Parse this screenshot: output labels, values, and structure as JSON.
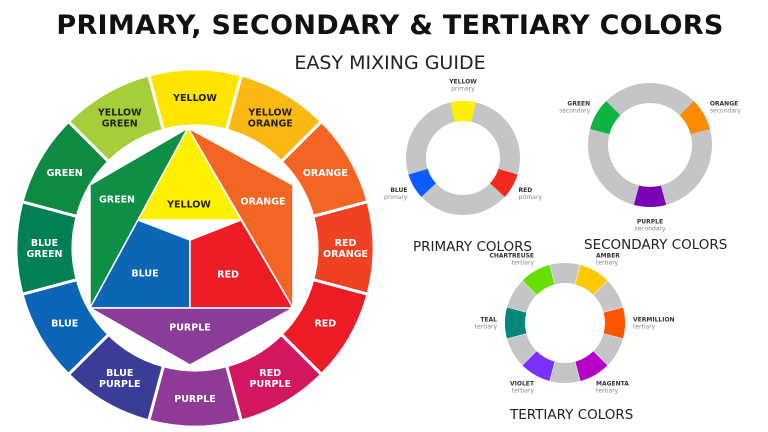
{
  "header": {
    "title": "PRIMARY, SECONDARY & TERTIARY COLORS",
    "subtitle": "EASY MIXING GUIDE"
  },
  "wheel": {
    "ring": [
      {
        "label": [
          "YELLOW"
        ],
        "color": "#ffe400"
      },
      {
        "label": [
          "YELLOW",
          "ORANGE"
        ],
        "color": "#fdb913"
      },
      {
        "label": [
          "ORANGE"
        ],
        "color": "#f26522"
      },
      {
        "label": [
          "RED",
          "ORANGE"
        ],
        "color": "#ef4123"
      },
      {
        "label": [
          "RED"
        ],
        "color": "#ed1c24"
      },
      {
        "label": [
          "RED",
          "PURPLE"
        ],
        "color": "#d31660"
      },
      {
        "label": [
          "PURPLE"
        ],
        "color": "#8e3a96"
      },
      {
        "label": [
          "BLUE",
          "PURPLE"
        ],
        "color": "#3b3b98"
      },
      {
        "label": [
          "BLUE"
        ],
        "color": "#0c64b6"
      },
      {
        "label": [
          "BLUE",
          "GREEN"
        ],
        "color": "#008053"
      },
      {
        "label": [
          "GREEN"
        ],
        "color": "#0f8a43"
      },
      {
        "label": [
          "YELLOW",
          "GREEN"
        ],
        "color": "#a6ce39"
      }
    ],
    "inner": {
      "yellow": {
        "label": "YELLOW",
        "color": "#fff200"
      },
      "orange": {
        "label": "ORANGE",
        "color": "#f26522"
      },
      "green": {
        "label": "GREEN",
        "color": "#0e8f45"
      },
      "blue": {
        "label": "BLUE",
        "color": "#0d66b5"
      },
      "red": {
        "label": "RED",
        "color": "#ee1d25"
      },
      "purple": {
        "label": "PURPLE",
        "color": "#8a3d98"
      }
    }
  },
  "donuts": [
    {
      "caption": "PRIMARY COLORS",
      "segments": [
        {
          "name": "YELLOW",
          "sub": "primary",
          "color": "#fff200",
          "angle": -90
        },
        {
          "name": "RED",
          "sub": "primary",
          "color": "#f5281c",
          "angle": 30
        },
        {
          "name": "BLUE",
          "sub": "primary",
          "color": "#0a5cff",
          "angle": 150
        }
      ]
    },
    {
      "caption": "SECONDARY COLORS",
      "segments": [
        {
          "name": "GREEN",
          "sub": "secondary",
          "color": "#0bb53f",
          "angle": -150
        },
        {
          "name": "ORANGE",
          "sub": "secondary",
          "color": "#ff8a00",
          "angle": -30
        },
        {
          "name": "PURPLE",
          "sub": "secondary",
          "color": "#7a00b8",
          "angle": 90
        }
      ]
    },
    {
      "caption": "TERTIARY COLORS",
      "segments": [
        {
          "name": "CHARTREUSE",
          "sub": "tertiary",
          "color": "#66e000",
          "angle": -120
        },
        {
          "name": "AMBER",
          "sub": "tertiary",
          "color": "#ffc800",
          "angle": -60
        },
        {
          "name": "VERMILLION",
          "sub": "tertiary",
          "color": "#ff5400",
          "angle": 0
        },
        {
          "name": "MAGENTA",
          "sub": "tertiary",
          "color": "#b400c8",
          "angle": 60
        },
        {
          "name": "VIOLET",
          "sub": "tertiary",
          "color": "#7a30ff",
          "angle": 120
        },
        {
          "name": "TEAL",
          "sub": "tertiary",
          "color": "#00877a",
          "angle": 180
        }
      ]
    }
  ],
  "colors": {
    "ring_gray": "#c4c5c7"
  }
}
